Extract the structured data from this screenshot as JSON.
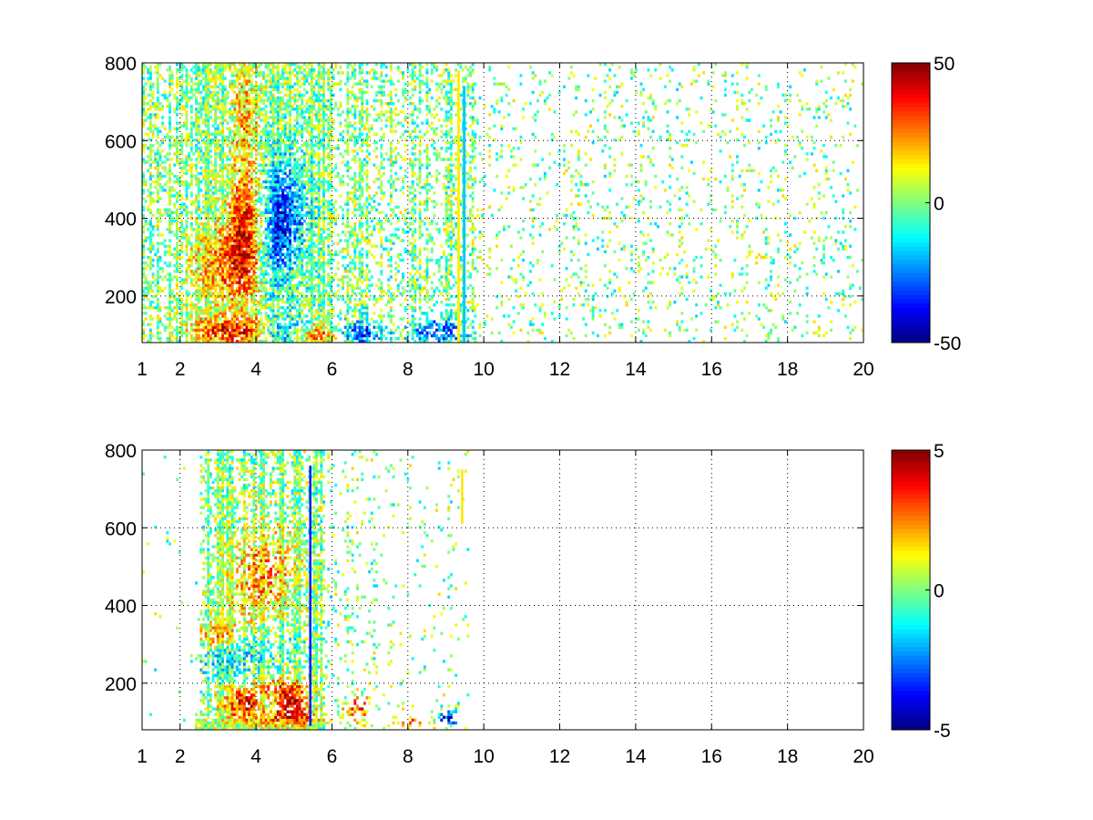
{
  "chart_data": [
    {
      "type": "heatmap",
      "title": "",
      "xlabel": "",
      "ylabel": "",
      "xlim": [
        1,
        20
      ],
      "ylim": [
        80,
        800
      ],
      "x_ticks": [
        1,
        2,
        4,
        6,
        8,
        10,
        12,
        14,
        16,
        18,
        20
      ],
      "y_ticks": [
        200,
        400,
        600,
        800
      ],
      "grid": true,
      "colormap": "jet",
      "colorbar": {
        "min": -50,
        "max": 50,
        "ticks": [
          50,
          0,
          -50
        ]
      },
      "blobs": [
        {
          "x": 3.7,
          "y": 110,
          "sx": 0.9,
          "sy": 25,
          "v": 45
        },
        {
          "x": 4.6,
          "y": 110,
          "sx": 0.6,
          "sy": 25,
          "v": -42
        },
        {
          "x": 5.6,
          "y": 100,
          "sx": 0.4,
          "sy": 20,
          "v": 30
        },
        {
          "x": 6.8,
          "y": 105,
          "sx": 0.4,
          "sy": 20,
          "v": -35
        },
        {
          "x": 8.8,
          "y": 110,
          "sx": 0.5,
          "sy": 25,
          "v": -30
        },
        {
          "x": 3.8,
          "y": 350,
          "sx": 0.35,
          "sy": 100,
          "v": 40
        },
        {
          "x": 3.1,
          "y": 280,
          "sx": 0.6,
          "sy": 70,
          "v": 22
        },
        {
          "x": 4.7,
          "y": 420,
          "sx": 0.45,
          "sy": 100,
          "v": -28
        },
        {
          "x": 4.3,
          "y": 320,
          "sx": 0.4,
          "sy": 80,
          "v": -20
        },
        {
          "x": 3.7,
          "y": 650,
          "sx": 0.25,
          "sy": 150,
          "v": 18
        }
      ],
      "density": [
        {
          "from": 1,
          "to": 2.5,
          "p": 0.45
        },
        {
          "from": 2.5,
          "to": 5.8,
          "p": 0.95
        },
        {
          "from": 5.8,
          "to": 7.2,
          "p": 0.45
        },
        {
          "from": 7.2,
          "to": 9.8,
          "p": 0.38
        },
        {
          "from": 9.8,
          "to": 20,
          "p": 0.09
        }
      ],
      "stripes": [
        {
          "x": 9.3,
          "width": 0.07,
          "from": 80,
          "to": 780,
          "v": 14
        },
        {
          "x": 9.45,
          "width": 0.07,
          "from": 80,
          "to": 740,
          "v": -18
        }
      ],
      "seed": 7
    },
    {
      "type": "heatmap",
      "title": "",
      "xlabel": "",
      "ylabel": "",
      "xlim": [
        1,
        20
      ],
      "ylim": [
        80,
        800
      ],
      "x_ticks": [
        1,
        2,
        4,
        6,
        8,
        10,
        12,
        14,
        16,
        18,
        20
      ],
      "y_ticks": [
        200,
        400,
        600,
        800
      ],
      "grid": true,
      "colormap": "jet",
      "colorbar": {
        "min": -5,
        "max": 5,
        "ticks": [
          5,
          0,
          -5
        ]
      },
      "blobs": [
        {
          "x": 3.9,
          "y": 150,
          "sx": 0.5,
          "sy": 30,
          "v": 4.5
        },
        {
          "x": 4.3,
          "y": 150,
          "sx": 0.25,
          "sy": 20,
          "v": -4.5
        },
        {
          "x": 4.8,
          "y": 160,
          "sx": 0.4,
          "sy": 40,
          "v": 4
        },
        {
          "x": 3.2,
          "y": 270,
          "sx": 0.6,
          "sy": 35,
          "v": -1.6
        },
        {
          "x": 4.4,
          "y": 320,
          "sx": 0.5,
          "sy": 80,
          "v": -1.3
        },
        {
          "x": 4.2,
          "y": 450,
          "sx": 0.6,
          "sy": 100,
          "v": 2.6
        },
        {
          "x": 3.0,
          "y": 320,
          "sx": 0.35,
          "sy": 25,
          "v": 2.5
        },
        {
          "x": 5.2,
          "y": 110,
          "sx": 0.6,
          "sy": 15,
          "v": 1.8
        },
        {
          "x": 3.5,
          "y": 105,
          "sx": 0.9,
          "sy": 15,
          "v": 0.3
        },
        {
          "x": 8.3,
          "y": 100,
          "sx": 0.3,
          "sy": 10,
          "v": 4
        },
        {
          "x": 9.0,
          "y": 110,
          "sx": 0.2,
          "sy": 15,
          "v": -4
        },
        {
          "x": 6.7,
          "y": 130,
          "sx": 0.25,
          "sy": 30,
          "v": 3
        }
      ],
      "density": [
        {
          "from": 1,
          "to": 2.5,
          "p": 0.01
        },
        {
          "from": 2.5,
          "to": 5.8,
          "p": 0.55
        },
        {
          "from": 5.8,
          "to": 7.2,
          "p": 0.12
        },
        {
          "from": 7.2,
          "to": 9.6,
          "p": 0.05
        },
        {
          "from": 9.6,
          "to": 20,
          "p": 0.0
        }
      ],
      "band": {
        "from": 2.4,
        "to": 5.8,
        "y_from": 80,
        "y_to": 110,
        "p": 0.9
      },
      "stripes": [
        {
          "x": 5.4,
          "width": 0.06,
          "from": 90,
          "to": 760,
          "v": -3.5
        },
        {
          "x": 9.4,
          "width": 0.06,
          "from": 610,
          "to": 750,
          "v": 1.5
        }
      ],
      "seed": 13
    }
  ]
}
